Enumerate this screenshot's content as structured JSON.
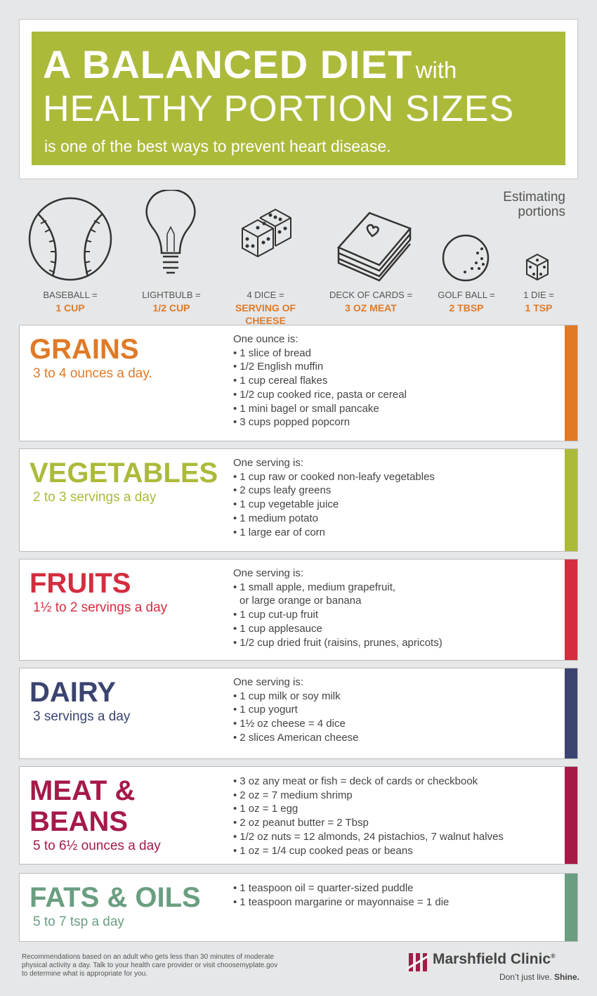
{
  "header": {
    "title_bold": "A BALANCED DIET",
    "title_with": "with",
    "title_line2": "HEALTHY PORTION SIZES",
    "subtitle": "is one of the best ways to prevent heart disease."
  },
  "portions": {
    "heading": [
      "Estimating",
      "portions"
    ],
    "items": [
      {
        "label": "BASEBALL =",
        "value": [
          "1 CUP"
        ]
      },
      {
        "label": "LIGHTBULB =",
        "value": [
          "1/2 CUP"
        ]
      },
      {
        "label": "4 DICE =",
        "value": [
          "SERVING OF",
          "CHEESE"
        ]
      },
      {
        "label": "DECK OF CARDS =",
        "value": [
          "3 OZ MEAT"
        ]
      },
      {
        "label": "GOLF BALL =",
        "value": [
          "2 TBSP"
        ]
      },
      {
        "label": "1 DIE =",
        "value": [
          "1 TSP"
        ]
      }
    ]
  },
  "sections": [
    {
      "title": [
        "GRAINS"
      ],
      "subtitle": "3 to 4 ounces a day.",
      "color": "#e07a27",
      "intro": "One ounce is:",
      "items": [
        [
          "1 slice of bread"
        ],
        [
          "1/2 English muffin"
        ],
        [
          "1 cup cereal flakes"
        ],
        [
          "1/2 cup cooked rice, pasta or cereal"
        ],
        [
          "1 mini bagel or small pancake"
        ],
        [
          "3 cups popped popcorn"
        ]
      ]
    },
    {
      "title": [
        "VEGETABLES"
      ],
      "subtitle": "2 to 3 servings a day",
      "color": "#acba3a",
      "intro": "One serving is:",
      "items": [
        [
          "1 cup raw or cooked non-leafy vegetables"
        ],
        [
          "2 cups leafy greens"
        ],
        [
          "1 cup vegetable juice"
        ],
        [
          "1 medium potato"
        ],
        [
          "1 large ear of corn"
        ]
      ]
    },
    {
      "title": [
        "FRUITS"
      ],
      "subtitle": "1½ to 2 servings a day",
      "color": "#d42d3f",
      "intro": "One serving is:",
      "items": [
        [
          "1 small apple, medium grapefruit,",
          "or large orange or banana"
        ],
        [
          "1 cup cut-up fruit"
        ],
        [
          "1 cup applesauce"
        ],
        [
          "1/2 cup dried fruit (raisins, prunes, apricots)"
        ]
      ]
    },
    {
      "title": [
        "DAIRY"
      ],
      "subtitle": "3 servings a day",
      "color": "#3b4470",
      "intro": "One serving is:",
      "items": [
        [
          "1 cup milk or soy milk"
        ],
        [
          "1 cup yogurt"
        ],
        [
          "1½ oz cheese = 4 dice"
        ],
        [
          "2 slices American cheese"
        ]
      ]
    },
    {
      "title": [
        "MEAT &",
        "BEANS"
      ],
      "subtitle": "5 to 6½ ounces a day",
      "color": "#a51a47",
      "items": [
        [
          "3 oz any meat or fish = deck of cards or checkbook"
        ],
        [
          "2 oz = 7 medium shrimp"
        ],
        [
          "1 oz = 1 egg"
        ],
        [
          "2 oz peanut butter = 2 Tbsp"
        ],
        [
          "1/2 oz nuts = 12 almonds, 24 pistachios, 7 walnut halves"
        ],
        [
          "1 oz = 1/4 cup cooked peas or beans"
        ]
      ]
    },
    {
      "title": [
        "FATS & OILS"
      ],
      "subtitle": "5 to 7 tsp a day",
      "color": "#6a9e80",
      "items": [
        [
          "1 teaspoon oil = quarter-sized puddle"
        ],
        [
          "1 teaspoon margarine or mayonnaise = 1 die"
        ]
      ]
    }
  ],
  "footer": {
    "note": [
      "Recommendations based on an adult who gets less than 30 minutes of moderate",
      "physical activity a day. Talk to your health care provider or visit choosemyplate.gov",
      "to determine what is appropriate for you."
    ],
    "brand": "Marshfield Clinic",
    "registered": "®",
    "tagline": "Don’t just live.",
    "tagline_bold": "Shine."
  }
}
